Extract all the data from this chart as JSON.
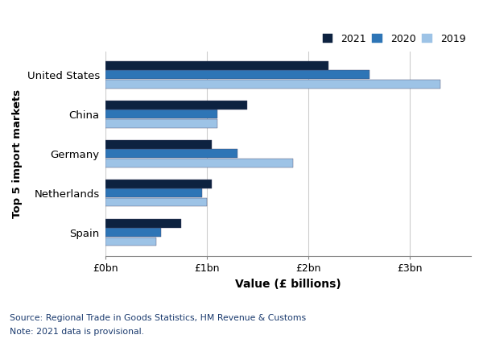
{
  "categories": [
    "Spain",
    "Netherlands",
    "Germany",
    "China",
    "United States"
  ],
  "years": [
    "2019",
    "2020",
    "2021"
  ],
  "values": {
    "United States": [
      3.3,
      2.6,
      2.2
    ],
    "China": [
      1.1,
      1.1,
      1.4
    ],
    "Germany": [
      1.85,
      1.3,
      1.05
    ],
    "Netherlands": [
      1.0,
      0.95,
      1.05
    ],
    "Spain": [
      0.5,
      0.55,
      0.75
    ]
  },
  "colors": {
    "2021": "#0d2240",
    "2020": "#2e75b6",
    "2019": "#9dc3e6"
  },
  "xlabel": "Value (£ billions)",
  "ylabel": "Top 5 import markets",
  "xlim": [
    0,
    3.6
  ],
  "xtick_values": [
    0,
    1,
    2,
    3
  ],
  "xtick_labels": [
    "£0bn",
    "£1bn",
    "£2bn",
    "£3bn"
  ],
  "source_text": "Source: Regional Trade in Goods Statistics, HM Revenue & Customs",
  "note_text": "Note: 2021 data is provisional.",
  "background_color": "#ffffff",
  "bar_height": 0.23,
  "legend_years": [
    "2021",
    "2020",
    "2019"
  ]
}
